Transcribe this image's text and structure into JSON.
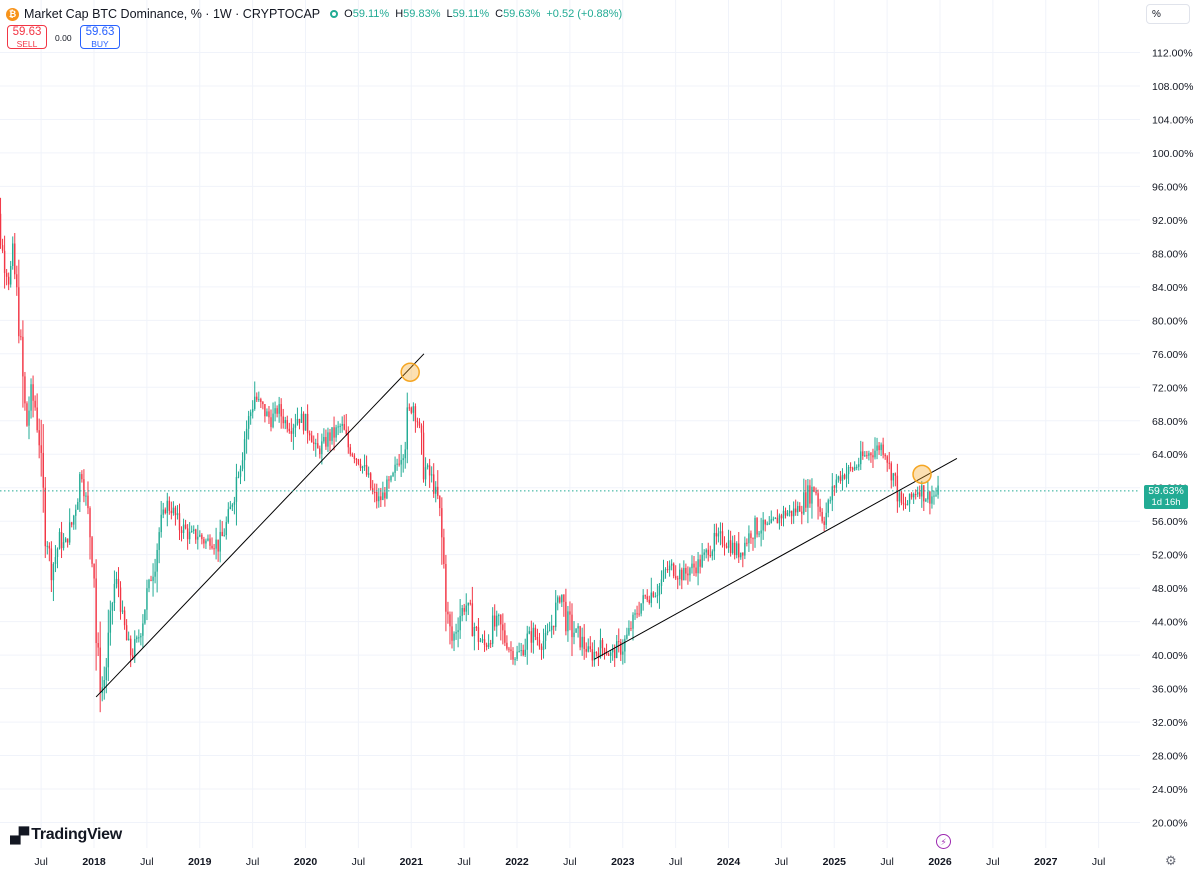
{
  "header": {
    "title": "Market Cap BTC Dominance, % · 1W · CRYPTOCAP",
    "symbol_icon": "bitcoin-icon",
    "ohlc": [
      {
        "key": "O",
        "value": "59.11%"
      },
      {
        "key": "H",
        "value": "59.83%"
      },
      {
        "key": "L",
        "value": "59.11%"
      },
      {
        "key": "C",
        "value": "59.63%"
      }
    ],
    "change": "+0.52 (+0.88%)"
  },
  "trade": {
    "sell_price": "59.63",
    "sell_label": "SELL",
    "buy_price": "59.63",
    "buy_label": "BUY",
    "spread": "0.00"
  },
  "scale_button": "%",
  "last_price": {
    "value": "59.63%",
    "countdown": "1d 16h"
  },
  "brand": "TradingView",
  "colors": {
    "up": "#22ab94",
    "down": "#f23645",
    "last_line": "#22ab94",
    "marker": "#f5a623",
    "trendline": "#000000"
  },
  "chart_data": {
    "type": "candlestick",
    "interval": "1W",
    "ylim": [
      18.5,
      115.5
    ],
    "scale": "percent",
    "y_ticks": [
      "112.00%",
      "108.00%",
      "104.00%",
      "100.00%",
      "96.00%",
      "92.00%",
      "88.00%",
      "84.00%",
      "80.00%",
      "76.00%",
      "72.00%",
      "68.00%",
      "64.00%",
      "60.00%",
      "56.00%",
      "52.00%",
      "48.00%",
      "44.00%",
      "40.00%",
      "36.00%",
      "32.00%",
      "28.00%",
      "24.00%",
      "20.00%"
    ],
    "x_ticks": [
      "Jul",
      "2018",
      "Jul",
      "2019",
      "Jul",
      "2020",
      "Jul",
      "2021",
      "Jul",
      "2022",
      "Jul",
      "2023",
      "Jul",
      "2024",
      "Jul",
      "2025",
      "Jul",
      "2026",
      "Jul",
      "2027",
      "Jul"
    ],
    "x_tick_dates": [
      2017.5,
      2018,
      2018.5,
      2019,
      2019.5,
      2020,
      2020.5,
      2021,
      2021.5,
      2022,
      2022.5,
      2023,
      2023.5,
      2024,
      2024.5,
      2025,
      2025.5,
      2026,
      2026.5,
      2027,
      2027.5
    ],
    "bold_ticks": [
      "2018",
      "2019",
      "2020",
      "2021",
      "2022",
      "2023",
      "2024",
      "2025",
      "2026",
      "2027"
    ],
    "last_value": 59.63,
    "close_path": [
      [
        2017.04,
        95.8
      ],
      [
        2017.07,
        94.5
      ],
      [
        2017.1,
        92.0
      ],
      [
        2017.13,
        88.5
      ],
      [
        2017.17,
        86.0
      ],
      [
        2017.2,
        84.5
      ],
      [
        2017.23,
        88.0
      ],
      [
        2017.26,
        84.0
      ],
      [
        2017.3,
        79.0
      ],
      [
        2017.33,
        72.0
      ],
      [
        2017.36,
        67.0
      ],
      [
        2017.4,
        71.0
      ],
      [
        2017.44,
        70.0
      ],
      [
        2017.48,
        66.0
      ],
      [
        2017.52,
        58.0
      ],
      [
        2017.56,
        53.5
      ],
      [
        2017.6,
        50.5
      ],
      [
        2017.64,
        52.0
      ],
      [
        2017.68,
        54.0
      ],
      [
        2017.72,
        53.0
      ],
      [
        2017.76,
        54.5
      ],
      [
        2017.8,
        56.0
      ],
      [
        2017.85,
        60.0
      ],
      [
        2017.88,
        62.0
      ],
      [
        2017.92,
        59.0
      ],
      [
        2017.96,
        55.0
      ],
      [
        2018.0,
        50.0
      ],
      [
        2018.02,
        42.0
      ],
      [
        2018.05,
        38.0
      ],
      [
        2018.08,
        36.0
      ],
      [
        2018.11,
        38.0
      ],
      [
        2018.14,
        42.0
      ],
      [
        2018.17,
        46.0
      ],
      [
        2018.2,
        49.0
      ],
      [
        2018.24,
        48.0
      ],
      [
        2018.27,
        44.0
      ],
      [
        2018.32,
        41.0
      ],
      [
        2018.36,
        40.0
      ],
      [
        2018.42,
        42.0
      ],
      [
        2018.48,
        46.0
      ],
      [
        2018.55,
        50.0
      ],
      [
        2018.62,
        55.0
      ],
      [
        2018.68,
        58.0
      ],
      [
        2018.74,
        57.5
      ],
      [
        2018.8,
        55.5
      ],
      [
        2018.86,
        55.0
      ],
      [
        2018.92,
        54.0
      ],
      [
        2018.98,
        54.5
      ],
      [
        2019.05,
        53.5
      ],
      [
        2019.12,
        54.0
      ],
      [
        2019.18,
        53.0
      ],
      [
        2019.24,
        55.0
      ],
      [
        2019.3,
        58.0
      ],
      [
        2019.36,
        62.0
      ],
      [
        2019.42,
        66.0
      ],
      [
        2019.48,
        69.0
      ],
      [
        2019.52,
        71.0
      ],
      [
        2019.56,
        70.0
      ],
      [
        2019.62,
        69.0
      ],
      [
        2019.68,
        68.0
      ],
      [
        2019.74,
        69.5
      ],
      [
        2019.8,
        68.0
      ],
      [
        2019.86,
        67.5
      ],
      [
        2019.92,
        68.5
      ],
      [
        2019.98,
        68.0
      ],
      [
        2020.04,
        67.0
      ],
      [
        2020.1,
        64.0
      ],
      [
        2020.16,
        65.0
      ],
      [
        2020.22,
        66.0
      ],
      [
        2020.28,
        66.5
      ],
      [
        2020.34,
        67.5
      ],
      [
        2020.4,
        65.0
      ],
      [
        2020.46,
        64.0
      ],
      [
        2020.52,
        63.0
      ],
      [
        2020.58,
        61.5
      ],
      [
        2020.64,
        59.0
      ],
      [
        2020.7,
        58.5
      ],
      [
        2020.76,
        59.5
      ],
      [
        2020.82,
        61.0
      ],
      [
        2020.88,
        63.5
      ],
      [
        2020.94,
        66.0
      ],
      [
        2020.98,
        69.0
      ],
      [
        2021.02,
        70.0
      ],
      [
        2021.06,
        68.0
      ],
      [
        2021.1,
        64.0
      ],
      [
        2021.14,
        62.0
      ],
      [
        2021.2,
        61.0
      ],
      [
        2021.26,
        58.0
      ],
      [
        2021.3,
        52.0
      ],
      [
        2021.34,
        45.0
      ],
      [
        2021.38,
        41.5
      ],
      [
        2021.42,
        43.0
      ],
      [
        2021.46,
        45.0
      ],
      [
        2021.52,
        46.0
      ],
      [
        2021.58,
        44.0
      ],
      [
        2021.64,
        42.0
      ],
      [
        2021.7,
        41.0
      ],
      [
        2021.76,
        43.0
      ],
      [
        2021.82,
        44.0
      ],
      [
        2021.88,
        42.0
      ],
      [
        2021.94,
        40.5
      ],
      [
        2021.99,
        40.0
      ],
      [
        2022.05,
        40.5
      ],
      [
        2022.1,
        42.0
      ],
      [
        2022.16,
        42.5
      ],
      [
        2022.22,
        41.5
      ],
      [
        2022.28,
        42.0
      ],
      [
        2022.34,
        44.0
      ],
      [
        2022.38,
        46.0
      ],
      [
        2022.42,
        47.5
      ],
      [
        2022.46,
        44.5
      ],
      [
        2022.52,
        43.0
      ],
      [
        2022.58,
        42.5
      ],
      [
        2022.64,
        41.0
      ],
      [
        2022.7,
        40.0
      ],
      [
        2022.76,
        40.5
      ],
      [
        2022.82,
        41.0
      ],
      [
        2022.88,
        40.0
      ],
      [
        2022.94,
        40.5
      ],
      [
        2023.0,
        41.0
      ],
      [
        2023.05,
        42.5
      ],
      [
        2023.1,
        44.0
      ],
      [
        2023.16,
        46.0
      ],
      [
        2023.22,
        47.0
      ],
      [
        2023.28,
        47.5
      ],
      [
        2023.34,
        48.0
      ],
      [
        2023.4,
        50.0
      ],
      [
        2023.46,
        50.5
      ],
      [
        2023.52,
        50.0
      ],
      [
        2023.58,
        49.5
      ],
      [
        2023.64,
        50.5
      ],
      [
        2023.7,
        50.5
      ],
      [
        2023.76,
        51.5
      ],
      [
        2023.82,
        53.0
      ],
      [
        2023.88,
        53.5
      ],
      [
        2023.94,
        54.0
      ],
      [
        2024.0,
        53.5
      ],
      [
        2024.06,
        52.5
      ],
      [
        2024.12,
        52.5
      ],
      [
        2024.18,
        54.0
      ],
      [
        2024.24,
        55.0
      ],
      [
        2024.3,
        55.5
      ],
      [
        2024.36,
        55.0
      ],
      [
        2024.42,
        55.5
      ],
      [
        2024.48,
        56.5
      ],
      [
        2024.54,
        57.0
      ],
      [
        2024.6,
        57.0
      ],
      [
        2024.66,
        57.5
      ],
      [
        2024.72,
        58.5
      ],
      [
        2024.78,
        59.5
      ],
      [
        2024.82,
        60.0
      ],
      [
        2024.86,
        57.5
      ],
      [
        2024.9,
        56.0
      ],
      [
        2024.96,
        58.5
      ],
      [
        2025.02,
        61.0
      ],
      [
        2025.08,
        61.5
      ],
      [
        2025.14,
        62.0
      ],
      [
        2025.2,
        62.5
      ],
      [
        2025.26,
        63.5
      ],
      [
        2025.32,
        64.0
      ],
      [
        2025.38,
        64.5
      ],
      [
        2025.44,
        65.0
      ],
      [
        2025.48,
        64.5
      ],
      [
        2025.52,
        62.5
      ],
      [
        2025.56,
        61.5
      ],
      [
        2025.6,
        59.5
      ],
      [
        2025.64,
        57.5
      ],
      [
        2025.68,
        58.0
      ],
      [
        2025.72,
        58.5
      ],
      [
        2025.76,
        59.5
      ],
      [
        2025.8,
        60.0
      ],
      [
        2025.84,
        59.5
      ],
      [
        2025.88,
        59.0
      ],
      [
        2025.92,
        59.0
      ],
      [
        2025.96,
        59.11
      ],
      [
        2025.99,
        59.63
      ]
    ],
    "trendlines": [
      {
        "from": [
          "2018.02",
          35.0
        ],
        "to": [
          "2021.12",
          76.0
        ]
      },
      {
        "from": [
          "2022.73",
          39.5
        ],
        "to": [
          "2026.16",
          63.5
        ]
      }
    ],
    "markers": [
      {
        "date": "2020.99",
        "value": 73.8
      },
      {
        "date": "2025.83",
        "value": 61.6
      }
    ]
  }
}
